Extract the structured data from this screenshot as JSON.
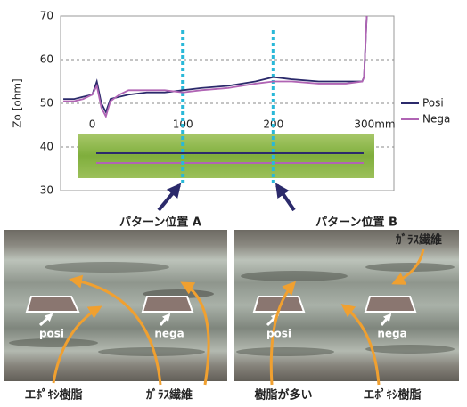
{
  "chart_data": {
    "type": "line",
    "y_label": "Zo [ohm]",
    "x": [
      -32,
      -20,
      -10,
      0,
      5,
      10,
      15,
      20,
      30,
      40,
      60,
      80,
      100,
      120,
      150,
      180,
      200,
      220,
      250,
      280,
      298,
      300,
      303
    ],
    "series": [
      {
        "name": "Posi",
        "color": "#2b2a6b",
        "values": [
          51,
          51,
          51.5,
          52,
          55,
          50,
          48,
          51,
          51.5,
          52,
          52.5,
          52.5,
          53,
          53.5,
          54,
          55,
          56,
          55.5,
          55,
          55,
          55,
          56,
          70
        ]
      },
      {
        "name": "Nega",
        "color": "#b064b4",
        "values": [
          50.5,
          50.5,
          51,
          52,
          54,
          49,
          47,
          50.5,
          52,
          53,
          53,
          53,
          52.5,
          53,
          53.5,
          54.5,
          55,
          55,
          54.5,
          54.5,
          55,
          56,
          70
        ]
      }
    ],
    "xlim": [
      -35,
      333
    ],
    "ylim": [
      30,
      70
    ],
    "xticks": [
      0,
      100,
      200,
      {
        "value": 300,
        "label": "300mm"
      }
    ],
    "yticks": [
      30,
      40,
      50,
      60,
      70
    ],
    "grid": true,
    "legend": "right"
  },
  "figures": {
    "left": {
      "title": "パターン位置 A",
      "posi": "posi",
      "nega": "nega",
      "resin": "エﾎﾟｷｼ樹脂",
      "glass": "ｶﾞﾗｽ繊維"
    },
    "right": {
      "title": "パターン位置 B",
      "posi": "posi",
      "nega": "nega",
      "glass": "ｶﾞﾗｽ繊維",
      "rich": "樹脂が多い",
      "resin": "エﾎﾟｷｼ樹脂"
    }
  }
}
